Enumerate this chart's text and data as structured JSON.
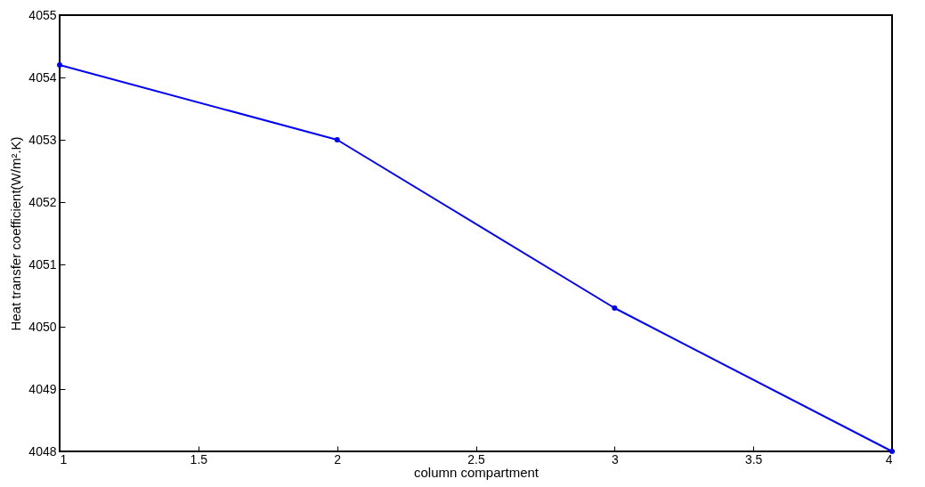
{
  "chart_data": {
    "type": "line",
    "xlabel": "column compartment",
    "ylabel": "Heat transfer coefficient(W/m².K)",
    "x": [
      1,
      2,
      3,
      4
    ],
    "series": [
      {
        "color": "#0000ff",
        "values": [
          4054.2,
          4053.0,
          4050.3,
          4048.0
        ]
      }
    ],
    "xlim": [
      1,
      4
    ],
    "xticks": [
      1,
      1.5,
      2,
      2.5,
      3,
      3.5,
      4
    ],
    "ylim": [
      4048,
      4055
    ],
    "yticks": [
      4048,
      4049,
      4050,
      4051,
      4052,
      4053,
      4054,
      4055
    ],
    "marker": "circle",
    "line_style": "solid"
  }
}
